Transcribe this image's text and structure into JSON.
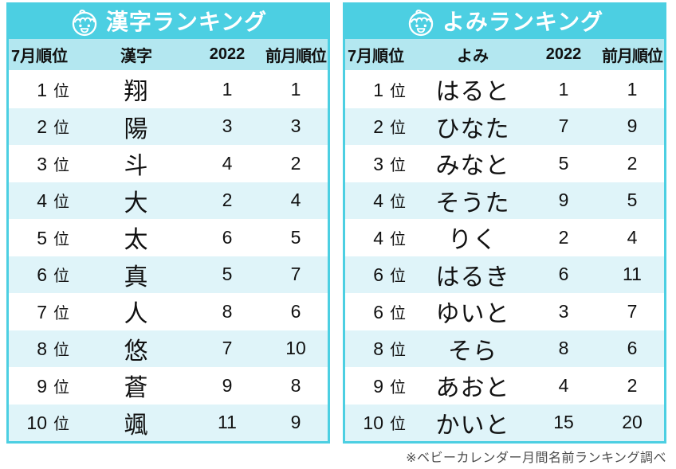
{
  "tables": [
    {
      "title": "漢字ランキング",
      "icon": "baby-face-icon",
      "columns": {
        "rank": "7月順位",
        "name": "漢字",
        "year": "2022",
        "prev": "前月順位"
      },
      "rows": [
        {
          "rank": "1",
          "suffix": "位",
          "name": "翔",
          "year": "1",
          "prev": "1"
        },
        {
          "rank": "2",
          "suffix": "位",
          "name": "陽",
          "year": "3",
          "prev": "3"
        },
        {
          "rank": "3",
          "suffix": "位",
          "name": "斗",
          "year": "4",
          "prev": "2"
        },
        {
          "rank": "4",
          "suffix": "位",
          "name": "大",
          "year": "2",
          "prev": "4"
        },
        {
          "rank": "5",
          "suffix": "位",
          "name": "太",
          "year": "6",
          "prev": "5"
        },
        {
          "rank": "6",
          "suffix": "位",
          "name": "真",
          "year": "5",
          "prev": "7"
        },
        {
          "rank": "7",
          "suffix": "位",
          "name": "人",
          "year": "8",
          "prev": "6"
        },
        {
          "rank": "8",
          "suffix": "位",
          "name": "悠",
          "year": "7",
          "prev": "10"
        },
        {
          "rank": "9",
          "suffix": "位",
          "name": "蒼",
          "year": "9",
          "prev": "8"
        },
        {
          "rank": "10",
          "suffix": "位",
          "name": "颯",
          "year": "11",
          "prev": "9"
        }
      ]
    },
    {
      "title": "よみランキング",
      "icon": "baby-face-icon",
      "columns": {
        "rank": "7月順位",
        "name": "よみ",
        "year": "2022",
        "prev": "前月順位"
      },
      "rows": [
        {
          "rank": "1",
          "suffix": "位",
          "name": "はると",
          "year": "1",
          "prev": "1"
        },
        {
          "rank": "2",
          "suffix": "位",
          "name": "ひなた",
          "year": "7",
          "prev": "9"
        },
        {
          "rank": "3",
          "suffix": "位",
          "name": "みなと",
          "year": "5",
          "prev": "2"
        },
        {
          "rank": "4",
          "suffix": "位",
          "name": "そうた",
          "year": "9",
          "prev": "5"
        },
        {
          "rank": "4",
          "suffix": "位",
          "name": "りく",
          "year": "2",
          "prev": "4"
        },
        {
          "rank": "6",
          "suffix": "位",
          "name": "はるき",
          "year": "6",
          "prev": "11"
        },
        {
          "rank": "6",
          "suffix": "位",
          "name": "ゆいと",
          "year": "3",
          "prev": "7"
        },
        {
          "rank": "8",
          "suffix": "位",
          "name": "そら",
          "year": "8",
          "prev": "6"
        },
        {
          "rank": "9",
          "suffix": "位",
          "name": "あおと",
          "year": "4",
          "prev": "2"
        },
        {
          "rank": "10",
          "suffix": "位",
          "name": "かいと",
          "year": "15",
          "prev": "20"
        }
      ]
    }
  ],
  "footer": "※ベビーカレンダー月間名前ランキング調べ",
  "colors": {
    "banner": "#4CCFE2",
    "header_row": "#B3E7F0",
    "stripe": "#DFF4F9",
    "text": "#111111",
    "banner_text": "#FFFFFF",
    "note": "#4A4A4A"
  },
  "chart_data": [
    {
      "type": "table",
      "title": "漢字ランキング",
      "columns": [
        "7月順位",
        "漢字",
        "2022",
        "前月順位"
      ],
      "rows": [
        [
          "1位",
          "翔",
          "1",
          "1"
        ],
        [
          "2位",
          "陽",
          "3",
          "3"
        ],
        [
          "3位",
          "斗",
          "4",
          "2"
        ],
        [
          "4位",
          "大",
          "2",
          "4"
        ],
        [
          "5位",
          "太",
          "6",
          "5"
        ],
        [
          "6位",
          "真",
          "5",
          "7"
        ],
        [
          "7位",
          "人",
          "8",
          "6"
        ],
        [
          "8位",
          "悠",
          "7",
          "10"
        ],
        [
          "9位",
          "蒼",
          "9",
          "8"
        ],
        [
          "10位",
          "颯",
          "11",
          "9"
        ]
      ]
    },
    {
      "type": "table",
      "title": "よみランキング",
      "columns": [
        "7月順位",
        "よみ",
        "2022",
        "前月順位"
      ],
      "rows": [
        [
          "1位",
          "はると",
          "1",
          "1"
        ],
        [
          "2位",
          "ひなた",
          "7",
          "9"
        ],
        [
          "3位",
          "みなと",
          "5",
          "2"
        ],
        [
          "4位",
          "そうた",
          "9",
          "5"
        ],
        [
          "4位",
          "りく",
          "2",
          "4"
        ],
        [
          "6位",
          "はるき",
          "6",
          "11"
        ],
        [
          "6位",
          "ゆいと",
          "3",
          "7"
        ],
        [
          "8位",
          "そら",
          "8",
          "6"
        ],
        [
          "9位",
          "あおと",
          "4",
          "2"
        ],
        [
          "10位",
          "かいと",
          "15",
          "20"
        ]
      ],
      "note": "※ベビーカレンダー月間名前ランキング調べ"
    }
  ]
}
